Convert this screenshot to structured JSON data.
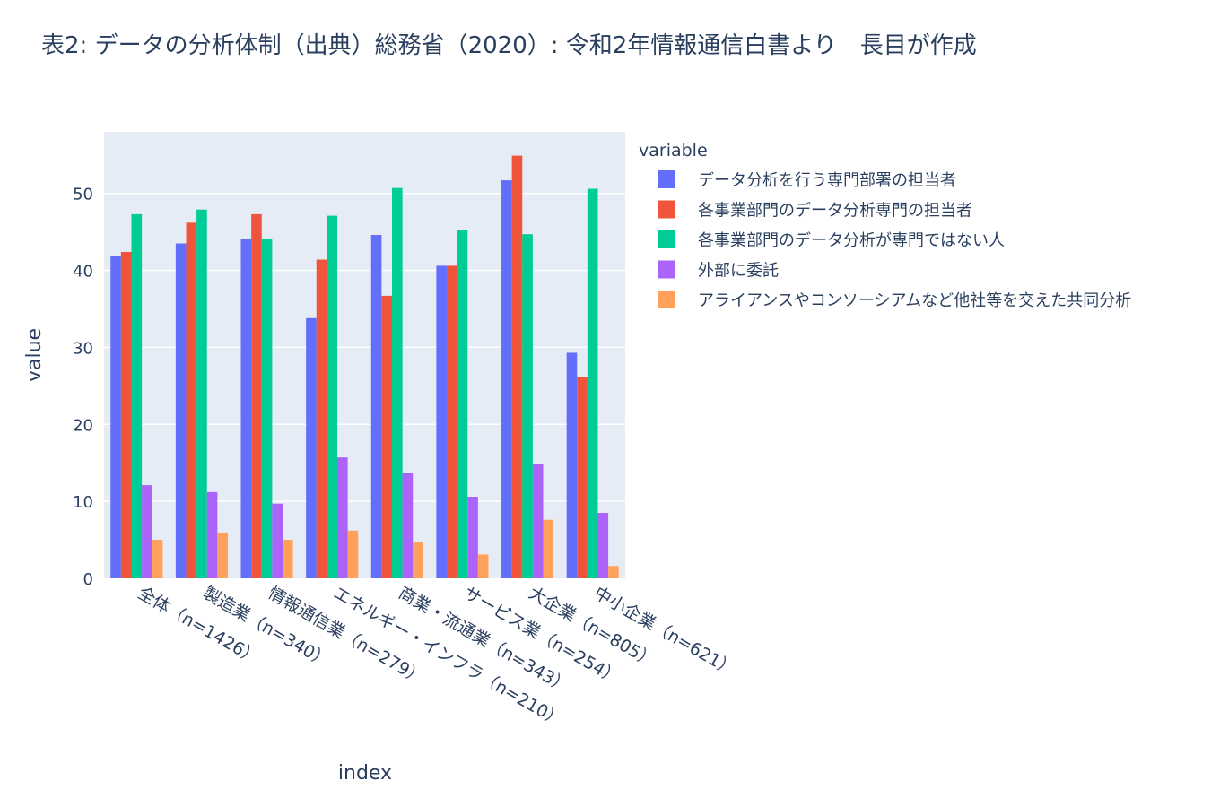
{
  "chart_data": {
    "type": "bar",
    "title": "表2: データの分析体制（出典）総務省（2020）: 令和2年情報通信白書より　長目が作成",
    "xlabel": "index",
    "ylabel": "value",
    "ylim": [
      0,
      58
    ],
    "yticks": [
      0,
      10,
      20,
      30,
      40,
      50
    ],
    "grid": true,
    "legend_title": "variable",
    "legend_position": "right",
    "categories": [
      "全体（n=1426）",
      "製造業（n=340）",
      "情報通信業（n=279）",
      "エネルギー・インフラ（n=210）",
      "商業・流通業（n=343）",
      "サービス業（n=254）",
      "大企業（n=805）",
      "中小企業（n=621）"
    ],
    "series": [
      {
        "name": "データ分析を行う専門部署の担当者",
        "color": "#636efa",
        "values": [
          41.9,
          43.5,
          44.1,
          33.8,
          44.6,
          40.6,
          51.7,
          29.3
        ]
      },
      {
        "name": "各事業部門のデータ分析専門の担当者",
        "color": "#ef553b",
        "values": [
          42.4,
          46.2,
          47.3,
          41.4,
          36.7,
          40.6,
          54.9,
          26.2
        ]
      },
      {
        "name": "各事業部門のデータ分析が専門ではない人",
        "color": "#00cc96",
        "values": [
          47.3,
          47.9,
          44.1,
          47.1,
          50.7,
          45.3,
          44.7,
          50.6
        ]
      },
      {
        "name": "外部に委託",
        "color": "#ab63fa",
        "values": [
          12.1,
          11.2,
          9.7,
          15.7,
          13.7,
          10.6,
          14.8,
          8.5
        ]
      },
      {
        "name": "アライアンスやコンソーシアムなど他社等を交えた共同分析",
        "color": "#ffa15a",
        "values": [
          5.0,
          5.9,
          5.0,
          6.2,
          4.7,
          3.1,
          7.6,
          1.6
        ]
      }
    ],
    "plot_background": "#e5ecf6",
    "grid_color": "#ffffff"
  }
}
